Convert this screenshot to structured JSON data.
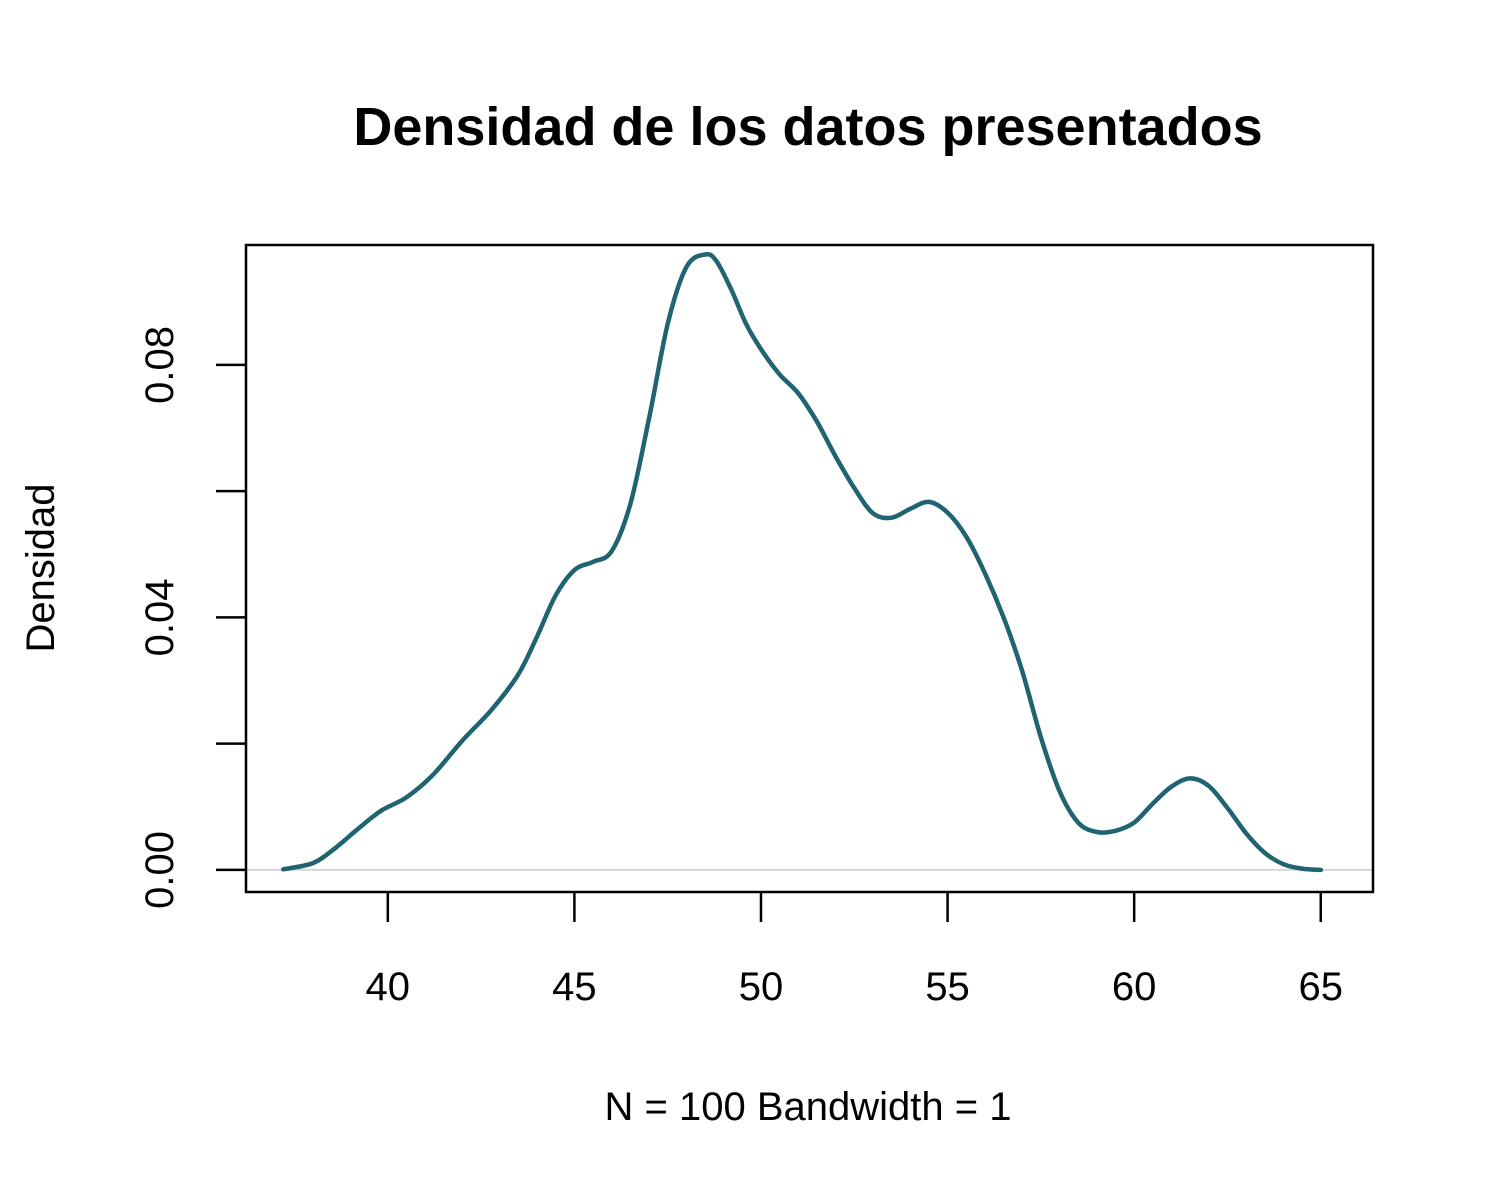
{
  "chart_data": {
    "type": "line",
    "title": "Densidad de los datos presentados",
    "xlabel": "N = 100   Bandwidth = 1",
    "ylabel": "Densidad",
    "xlim": [
      36.2,
      66.4
    ],
    "ylim": [
      -0.0035,
      0.099
    ],
    "x_ticks": [
      40,
      45,
      50,
      55,
      60,
      65
    ],
    "x_tick_labels": [
      "40",
      "45",
      "50",
      "55",
      "60",
      "65"
    ],
    "y_ticks": [
      0.0,
      0.02,
      0.04,
      0.06,
      0.08
    ],
    "y_tick_labels": [
      "0.00",
      "",
      "0.04",
      "",
      "0.08"
    ],
    "grid": false,
    "legend": "none",
    "reference_line": 0,
    "series": [
      {
        "color": "#1f6470",
        "x": [
          37.2,
          38.0,
          38.6,
          39.2,
          39.8,
          40.5,
          41.2,
          42.0,
          42.8,
          43.5,
          44.0,
          44.5,
          45.0,
          45.5,
          46.0,
          46.5,
          47.0,
          47.5,
          48.0,
          48.5,
          48.8,
          49.2,
          49.6,
          50.0,
          50.5,
          51.0,
          51.5,
          52.0,
          52.5,
          53.0,
          53.5,
          54.0,
          54.5,
          55.0,
          55.5,
          56.0,
          56.5,
          57.0,
          57.5,
          58.0,
          58.5,
          59.0,
          59.5,
          60.0,
          60.5,
          61.0,
          61.5,
          62.0,
          62.5,
          63.0,
          63.5,
          64.0,
          64.5,
          65.0
        ],
        "values": [
          0.0001,
          0.0011,
          0.0035,
          0.0065,
          0.0093,
          0.0115,
          0.015,
          0.0205,
          0.0255,
          0.031,
          0.037,
          0.0435,
          0.0475,
          0.0488,
          0.0505,
          0.058,
          0.0715,
          0.0865,
          0.0955,
          0.0975,
          0.0965,
          0.092,
          0.0865,
          0.0825,
          0.0785,
          0.0755,
          0.071,
          0.0655,
          0.0605,
          0.0565,
          0.0558,
          0.0572,
          0.0583,
          0.0566,
          0.0528,
          0.047,
          0.04,
          0.0315,
          0.021,
          0.0125,
          0.0075,
          0.006,
          0.0062,
          0.0075,
          0.0105,
          0.0132,
          0.0145,
          0.0133,
          0.0098,
          0.0058,
          0.0027,
          0.0009,
          0.0002,
          0.0
        ]
      }
    ]
  }
}
